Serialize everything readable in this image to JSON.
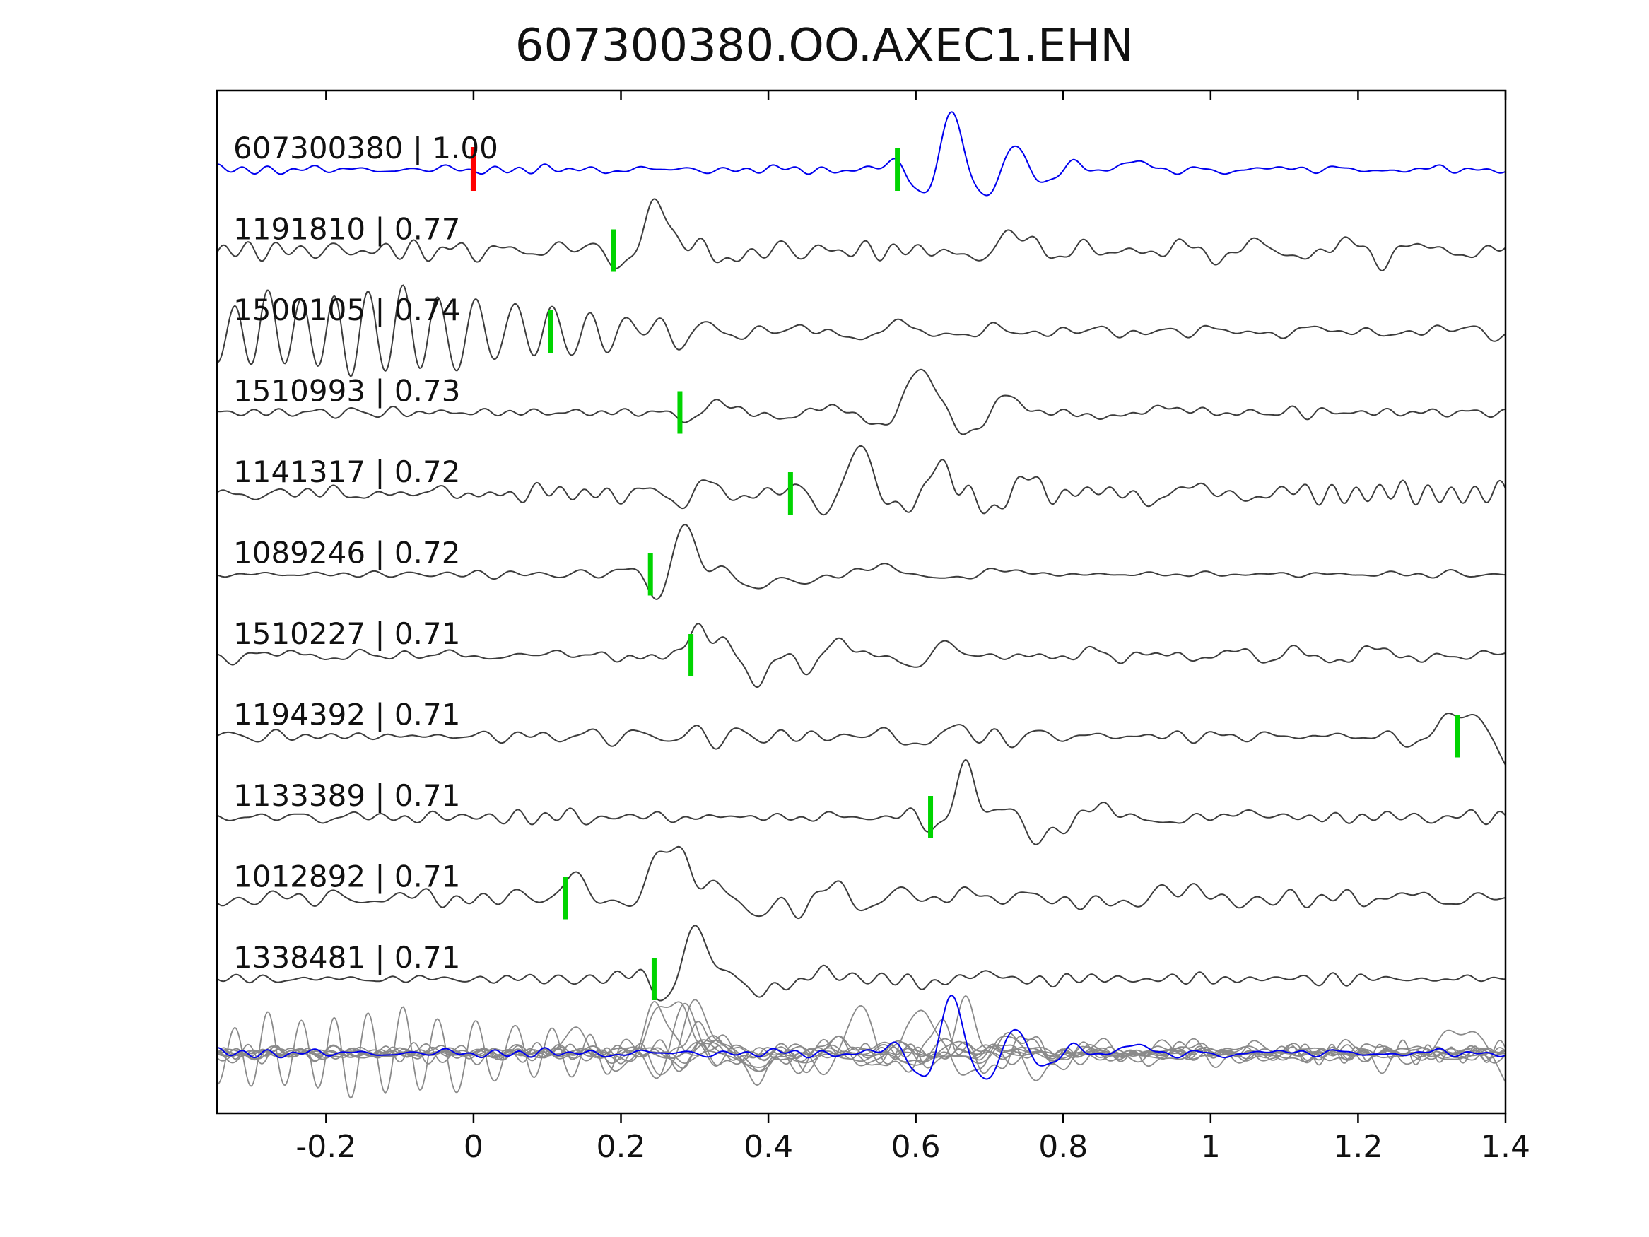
{
  "title": "607300380.OO.AXEC1.EHN",
  "chart_data": {
    "type": "line",
    "title": "607300380.OO.AXEC1.EHN",
    "xlabel": "",
    "ylabel": "",
    "xlim": [
      -0.348,
      1.4
    ],
    "x_tick_values": [
      -0.2,
      0,
      0.2,
      0.4,
      0.6,
      0.8,
      1,
      1.2,
      1.4
    ],
    "x_tick_labels": [
      "-0.2",
      "0",
      "0.2",
      "0.4",
      "0.6",
      "0.8",
      "1",
      "1.2",
      "1.4"
    ],
    "grid": false,
    "legend": null,
    "colors": {
      "trace": "#3c3c3c",
      "template_trace": "#0000ee",
      "pick_marker": "#00d400",
      "detection_marker": "#ff0000",
      "overlay_trace": "#8a8a8a",
      "axis": "#000000",
      "text": "#111111"
    },
    "traces": [
      {
        "id": "607300380",
        "label": "607300380 | 1.00",
        "correlation": 1.0,
        "is_template": true,
        "pick_time": 0.575,
        "detection_time": 0.0,
        "synth": {
          "seed": 101,
          "noise": 5,
          "bursts": [
            {
              "c": 0.585,
              "w": 0.02,
              "f": 12,
              "a": -28,
              "p": 0
            },
            {
              "c": 0.645,
              "w": 0.035,
              "f": 11,
              "a": 85,
              "p": 1.3
            },
            {
              "c": 0.72,
              "w": 0.035,
              "f": 12,
              "a": 40,
              "p": 0.2
            },
            {
              "c": 0.8,
              "w": 0.03,
              "f": 10,
              "a": 22,
              "p": 0
            },
            {
              "c": 0.88,
              "w": 0.04,
              "f": 6,
              "a": 16,
              "p": 0.5
            },
            {
              "c": 1.05,
              "w": 0.06,
              "f": 7,
              "a": 7,
              "p": 0
            }
          ]
        }
      },
      {
        "id": "1191810",
        "label": "1191810 | 0.77",
        "correlation": 0.77,
        "pick_time": 0.19,
        "synth": {
          "seed": 102,
          "noise": 13,
          "bursts": [
            {
              "c": 0.175,
              "w": 0.025,
              "f": 9,
              "a": -35,
              "p": 0.2
            },
            {
              "c": 0.245,
              "w": 0.03,
              "f": 9,
              "a": 78,
              "p": 1.4
            },
            {
              "c": 0.32,
              "w": 0.04,
              "f": 8,
              "a": -30,
              "p": 0
            },
            {
              "c": 0.72,
              "w": 0.05,
              "f": 7,
              "a": 28,
              "p": 0.8
            },
            {
              "c": 1.15,
              "w": 0.25,
              "f": 9,
              "a": 14,
              "p": 0
            }
          ]
        }
      },
      {
        "id": "1500105",
        "label": "1500105 | 0.74",
        "correlation": 0.74,
        "pick_time": 0.105,
        "synth": {
          "seed": 103,
          "noise": 10,
          "bursts": [
            {
              "c": -0.2,
              "w": 0.25,
              "f": 22,
              "a": 55,
              "p": 0
            },
            {
              "c": 0.05,
              "w": 0.15,
              "f": 20,
              "a": 55,
              "p": 0.6
            },
            {
              "c": 0.3,
              "w": 0.07,
              "f": 14,
              "a": 22,
              "p": 0
            },
            {
              "c": 0.55,
              "w": 0.12,
              "f": 8,
              "a": 14,
              "p": 0
            }
          ]
        }
      },
      {
        "id": "1510993",
        "label": "1510993 | 0.73",
        "correlation": 0.73,
        "pick_time": 0.28,
        "synth": {
          "seed": 104,
          "noise": 6,
          "bursts": [
            {
              "c": 0.32,
              "w": 0.04,
              "f": 9,
              "a": 20,
              "p": 0.5
            },
            {
              "c": 0.45,
              "w": 0.05,
              "f": 7,
              "a": 12,
              "p": 0
            },
            {
              "c": 0.6,
              "w": 0.05,
              "f": 7,
              "a": 62,
              "p": 1.2
            },
            {
              "c": 0.7,
              "w": 0.04,
              "f": 8,
              "a": 38,
              "p": 0
            },
            {
              "c": 0.9,
              "w": 0.1,
              "f": 5,
              "a": 8,
              "p": 0
            }
          ]
        }
      },
      {
        "id": "1141317",
        "label": "1141317 | 0.72",
        "correlation": 0.72,
        "pick_time": 0.43,
        "synth": {
          "seed": 105,
          "noise": 12,
          "bursts": [
            {
              "c": 0.3,
              "w": 0.06,
              "f": 10,
              "a": 20,
              "p": 0
            },
            {
              "c": 0.455,
              "w": 0.025,
              "f": 8,
              "a": -30,
              "p": 0.3
            },
            {
              "c": 0.52,
              "w": 0.035,
              "f": 8,
              "a": 68,
              "p": 1.4
            },
            {
              "c": 0.62,
              "w": 0.04,
              "f": 9,
              "a": 50,
              "p": 0.6
            },
            {
              "c": 0.73,
              "w": 0.05,
              "f": 9,
              "a": 28,
              "p": 0
            },
            {
              "c": 0.95,
              "w": 0.15,
              "f": 7,
              "a": 14,
              "p": 0
            }
          ]
        }
      },
      {
        "id": "1089246",
        "label": "1089246 | 0.72",
        "correlation": 0.72,
        "pick_time": 0.24,
        "synth": {
          "seed": 106,
          "noise": 5,
          "bursts": [
            {
              "c": 0.235,
              "w": 0.03,
              "f": 8,
              "a": -30,
              "p": 0.4
            },
            {
              "c": 0.285,
              "w": 0.035,
              "f": 9,
              "a": 70,
              "p": 1.5
            },
            {
              "c": 0.36,
              "w": 0.04,
              "f": 7,
              "a": -32,
              "p": 0.2
            },
            {
              "c": 0.5,
              "w": 0.09,
              "f": 4,
              "a": 14,
              "p": 0
            },
            {
              "c": 0.68,
              "w": 0.08,
              "f": 5,
              "a": 8,
              "p": 0
            }
          ]
        }
      },
      {
        "id": "1510227",
        "label": "1510227 | 0.71",
        "correlation": 0.71,
        "pick_time": 0.295,
        "synth": {
          "seed": 107,
          "noise": 9,
          "bursts": [
            {
              "c": 0.3,
              "w": 0.025,
              "f": 10,
              "a": 35,
              "p": 1.2
            },
            {
              "c": 0.365,
              "w": 0.035,
              "f": 7,
              "a": -65,
              "p": 0.2
            },
            {
              "c": 0.47,
              "w": 0.05,
              "f": 9,
              "a": 26,
              "p": 0
            },
            {
              "c": 0.62,
              "w": 0.08,
              "f": 8,
              "a": 16,
              "p": 0
            },
            {
              "c": 1.1,
              "w": 0.2,
              "f": 10,
              "a": 12,
              "p": 0
            }
          ]
        }
      },
      {
        "id": "1194392",
        "label": "1194392 | 0.71",
        "correlation": 0.71,
        "pick_time": 1.335,
        "synth": {
          "seed": 108,
          "noise": 11,
          "bursts": [
            {
              "c": 0.63,
              "w": 0.08,
              "f": 9,
              "a": 16,
              "p": 0
            },
            {
              "c": 1.3,
              "w": 0.03,
              "f": 7,
              "a": 35,
              "p": 0.3
            },
            {
              "c": 1.385,
              "w": 0.04,
              "f": 6,
              "a": -75,
              "p": 0.2
            }
          ]
        }
      },
      {
        "id": "1133389",
        "label": "1133389 | 0.71",
        "correlation": 0.71,
        "pick_time": 0.62,
        "synth": {
          "seed": 109,
          "noise": 8,
          "bursts": [
            {
              "c": 0.6,
              "w": 0.02,
              "f": 10,
              "a": -18,
              "p": 0
            },
            {
              "c": 0.665,
              "w": 0.035,
              "f": 9,
              "a": 75,
              "p": 1.4
            },
            {
              "c": 0.745,
              "w": 0.035,
              "f": 8,
              "a": -45,
              "p": 0.3
            },
            {
              "c": 0.82,
              "w": 0.04,
              "f": 7,
              "a": 25,
              "p": 0
            },
            {
              "c": 1.0,
              "w": 0.1,
              "f": 5,
              "a": 8,
              "p": 0
            }
          ]
        }
      },
      {
        "id": "1012892",
        "label": "1012892 | 0.71",
        "correlation": 0.71,
        "pick_time": 0.125,
        "synth": {
          "seed": 110,
          "noise": 12,
          "bursts": [
            {
              "c": 0.135,
              "w": 0.025,
              "f": 8,
              "a": 38,
              "p": 1.5
            },
            {
              "c": 0.27,
              "w": 0.05,
              "f": 5,
              "a": 80,
              "p": 1.5
            },
            {
              "c": 0.36,
              "w": 0.035,
              "f": 7,
              "a": -40,
              "p": 0.2
            },
            {
              "c": 0.46,
              "w": 0.04,
              "f": 9,
              "a": 30,
              "p": 0
            },
            {
              "c": 0.56,
              "w": 0.04,
              "f": 8,
              "a": 25,
              "p": 0
            },
            {
              "c": 0.9,
              "w": 0.2,
              "f": 4,
              "a": 10,
              "p": 0
            }
          ]
        }
      },
      {
        "id": "1338481",
        "label": "1338481 | 0.71",
        "correlation": 0.71,
        "pick_time": 0.245,
        "synth": {
          "seed": 111,
          "noise": 7,
          "bursts": [
            {
              "c": 0.24,
              "w": 0.025,
              "f": 8,
              "a": -35,
              "p": 0.3
            },
            {
              "c": 0.3,
              "w": 0.03,
              "f": 8,
              "a": 75,
              "p": 1.4
            },
            {
              "c": 0.365,
              "w": 0.03,
              "f": 8,
              "a": -30,
              "p": 0.2
            },
            {
              "c": 0.45,
              "w": 0.06,
              "f": 7,
              "a": 14,
              "p": 0
            },
            {
              "c": 0.65,
              "w": 0.1,
              "f": 6,
              "a": 8,
              "p": 0
            }
          ]
        }
      }
    ],
    "overlay_row": {
      "description": "all detection traces overlaid in gray with the template trace in blue",
      "includes_all_traces": true,
      "highlight_trace": "607300380"
    }
  }
}
